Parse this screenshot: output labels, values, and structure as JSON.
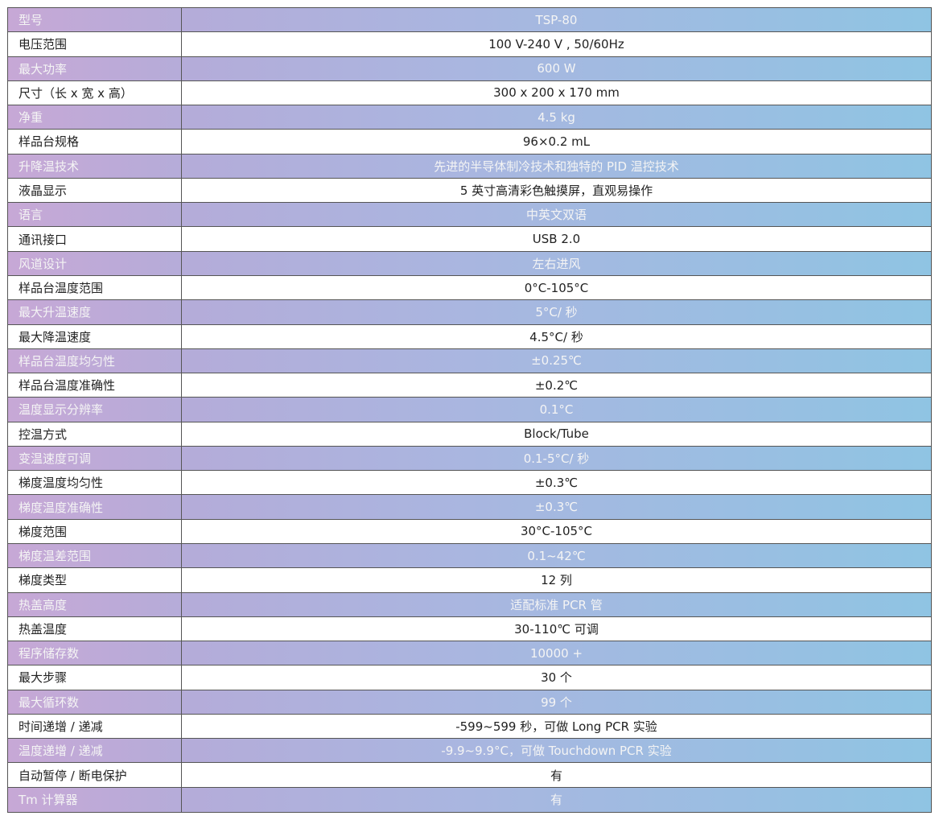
{
  "table": {
    "rows": [
      [
        "型号",
        "TSP-80"
      ],
      [
        "电压范围",
        "100 V-240 V , 50/60Hz"
      ],
      [
        "最大功率",
        "600 W"
      ],
      [
        "尺寸（长 x 宽 x 高）",
        "300 x 200 x 170 mm"
      ],
      [
        "净重",
        "4.5 kg"
      ],
      [
        "样品台规格",
        "96×0.2 mL"
      ],
      [
        "升降温技术",
        "先进的半导体制冷技术和独特的 PID 温控技术"
      ],
      [
        "液晶显示",
        "5 英寸高清彩色触摸屏，直观易操作"
      ],
      [
        "语言",
        "中英文双语"
      ],
      [
        "通讯接口",
        "USB 2.0"
      ],
      [
        "风道设计",
        "左右进风"
      ],
      [
        "样品台温度范围",
        "0°C-105°C"
      ],
      [
        "最大升温速度",
        "5°C/ 秒"
      ],
      [
        "最大降温速度",
        "4.5°C/ 秒"
      ],
      [
        "样品台温度均匀性",
        "±0.25℃"
      ],
      [
        "样品台温度准确性",
        "±0.2℃"
      ],
      [
        "温度显示分辨率",
        "0.1°C"
      ],
      [
        "控温方式",
        "Block/Tube"
      ],
      [
        "变温速度可调",
        "0.1-5°C/ 秒"
      ],
      [
        "梯度温度均匀性",
        "±0.3℃"
      ],
      [
        "梯度温度准确性",
        "±0.3℃"
      ],
      [
        "梯度范围",
        "30°C-105°C"
      ],
      [
        "梯度温差范围",
        "0.1~42℃"
      ],
      [
        "梯度类型",
        "12 列"
      ],
      [
        "热盖高度",
        "适配标准 PCR 管"
      ],
      [
        "热盖温度",
        "30-110℃ 可调"
      ],
      [
        "程序储存数",
        "10000 +"
      ],
      [
        "最大步骤",
        "30 个"
      ],
      [
        "最大循环数",
        "99 个"
      ],
      [
        "时间递增 / 递减",
        "-599~599 秒，可做 Long PCR 实验"
      ],
      [
        "温度递增 / 递减",
        "-9.9~9.9°C，可做 Touchdown PCR 实验"
      ],
      [
        "自动暂停 / 断电保护",
        "有"
      ],
      [
        "Tm 计算器",
        "有"
      ]
    ]
  }
}
